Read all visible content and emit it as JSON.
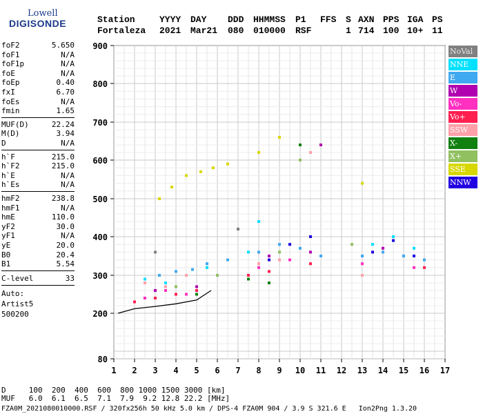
{
  "logo": {
    "top": "Lowell",
    "bottom": "DIGISONDE"
  },
  "header": {
    "labels": [
      "Station",
      "YYYY",
      "DAY",
      "DDD",
      "HHMMSS",
      "P1",
      "FFS",
      "S",
      "AXN",
      "PPS",
      "IGA",
      "PS"
    ],
    "values": [
      "Fortaleza",
      "2021",
      "Mar21",
      "080",
      "010000",
      "RSF",
      "1",
      "714",
      "100",
      "10+",
      "11"
    ]
  },
  "params_group1": [
    {
      "k": "foF2",
      "v": "5.650"
    },
    {
      "k": "foF1",
      "v": "N/A"
    },
    {
      "k": "foF1p",
      "v": "N/A"
    },
    {
      "k": "foE",
      "v": "N/A"
    },
    {
      "k": "foEp",
      "v": "0.40"
    },
    {
      "k": "fxI",
      "v": "6.70"
    },
    {
      "k": "foEs",
      "v": "N/A"
    },
    {
      "k": "fmin",
      "v": "1.65"
    }
  ],
  "params_group2": [
    {
      "k": "MUF(D)",
      "v": "22.24"
    },
    {
      "k": "M(D)",
      "v": "3.94"
    },
    {
      "k": "D",
      "v": "N/A"
    }
  ],
  "params_group3": [
    {
      "k": "h`F",
      "v": "215.0"
    },
    {
      "k": "h`F2",
      "v": "215.0"
    },
    {
      "k": "h`E",
      "v": "N/A"
    },
    {
      "k": "h`Es",
      "v": "N/A"
    }
  ],
  "params_group4": [
    {
      "k": "hmF2",
      "v": "238.8"
    },
    {
      "k": "hmF1",
      "v": "N/A"
    },
    {
      "k": "hmE",
      "v": "110.0"
    },
    {
      "k": "yF2",
      "v": "30.0"
    },
    {
      "k": "yF1",
      "v": "N/A"
    },
    {
      "k": "yE",
      "v": "20.0"
    },
    {
      "k": "B0",
      "v": "20.4"
    },
    {
      "k": "B1",
      "v": "5.54"
    }
  ],
  "clevel": {
    "k": "C-level",
    "v": "33"
  },
  "auto": [
    "Auto:",
    "Artist5",
    "500200"
  ],
  "legend": [
    {
      "label": "NoVal",
      "color": "#808080"
    },
    {
      "label": "NNE",
      "color": "#00e0ff"
    },
    {
      "label": "E",
      "color": "#40a8f0"
    },
    {
      "label": "W",
      "color": "#b000b0"
    },
    {
      "label": "Vo-",
      "color": "#ff30c0"
    },
    {
      "label": "Vo+",
      "color": "#ff2050"
    },
    {
      "label": "SSW",
      "color": "#ffa0a8"
    },
    {
      "label": "X-",
      "color": "#108010"
    },
    {
      "label": "X+",
      "color": "#90c060"
    },
    {
      "label": "SSE",
      "color": "#d8d800"
    },
    {
      "label": "NNW",
      "color": "#2000e0"
    }
  ],
  "bottom": {
    "line1": "D     100  200  400  600  800 1000 1500 3000 [km]",
    "line2": "MUF   6.0  6.1  6.5  7.1  7.9  9.2 12.8 22.2 [MHz]",
    "line3": "FZA0M_2021080010000.RSF / 320fx256h 50 kHz 5.0 km / DPS-4 FZA0M 904 / 3.9 S 321.6 E   Ion2Png 1.3.20"
  },
  "chart_data": {
    "type": "scatter",
    "xlim": [
      1,
      17
    ],
    "ylim": [
      80,
      900
    ],
    "x_ticks": [
      1,
      2,
      3,
      4,
      5,
      6,
      7,
      8,
      9,
      10,
      11,
      12,
      13,
      14,
      15,
      16,
      17
    ],
    "y_ticks": [
      80,
      200,
      300,
      400,
      500,
      600,
      700,
      800,
      900
    ],
    "grid": true,
    "series": [
      {
        "name": "E",
        "x": [
          3.2,
          4.0,
          4.8,
          5.5,
          6.5,
          8.0,
          9.0,
          10.0,
          11.0,
          13.0,
          14.0,
          15.0,
          16.0
        ],
        "y": [
          300,
          310,
          315,
          330,
          340,
          360,
          380,
          370,
          350,
          350,
          360,
          350,
          340
        ]
      },
      {
        "name": "NNE",
        "x": [
          2.5,
          3.5,
          4.5,
          5.5,
          7.5,
          8.0,
          13.5,
          14.5,
          15.5
        ],
        "y": [
          290,
          280,
          300,
          320,
          360,
          440,
          380,
          400,
          370
        ]
      },
      {
        "name": "W",
        "x": [
          3.0,
          4.0,
          5.0,
          8.5,
          10.5,
          11.0,
          14.0
        ],
        "y": [
          260,
          250,
          270,
          350,
          360,
          640,
          370
        ]
      },
      {
        "name": "Vo-",
        "x": [
          2.5,
          3.5,
          4.5,
          8.0,
          9.5,
          13.0,
          15.5
        ],
        "y": [
          240,
          260,
          250,
          320,
          340,
          330,
          320
        ]
      },
      {
        "name": "Vo+",
        "x": [
          2.0,
          3.0,
          4.0,
          5.0,
          7.5,
          8.5,
          10.5,
          16.0
        ],
        "y": [
          230,
          240,
          250,
          260,
          300,
          310,
          330,
          320
        ]
      },
      {
        "name": "SSW",
        "x": [
          2.5,
          3.5,
          4.5,
          8.0,
          9.0,
          10.5,
          13.0
        ],
        "y": [
          280,
          270,
          300,
          330,
          340,
          620,
          300
        ]
      },
      {
        "name": "X-",
        "x": [
          5.0,
          7.5,
          8.5,
          10.0
        ],
        "y": [
          250,
          290,
          280,
          640
        ]
      },
      {
        "name": "X+",
        "x": [
          4.0,
          6.0,
          9.0,
          10.0,
          12.5
        ],
        "y": [
          270,
          300,
          360,
          600,
          380
        ]
      },
      {
        "name": "SSE",
        "x": [
          3.2,
          3.8,
          4.5,
          5.2,
          5.8,
          6.5,
          8.0,
          9.0,
          13.0
        ],
        "y": [
          500,
          530,
          560,
          570,
          580,
          590,
          620,
          660,
          540
        ]
      },
      {
        "name": "NNW",
        "x": [
          8.5,
          9.5,
          10.5,
          13.5,
          14.5,
          15.5
        ],
        "y": [
          340,
          380,
          400,
          360,
          390,
          350
        ]
      },
      {
        "name": "NoVal",
        "x": [
          3.0,
          7.0
        ],
        "y": [
          360,
          420
        ]
      }
    ],
    "profile_curve": {
      "x": [
        1.2,
        2.0,
        3.0,
        4.0,
        5.0,
        5.7
      ],
      "y": [
        200,
        212,
        218,
        225,
        235,
        260
      ]
    }
  }
}
